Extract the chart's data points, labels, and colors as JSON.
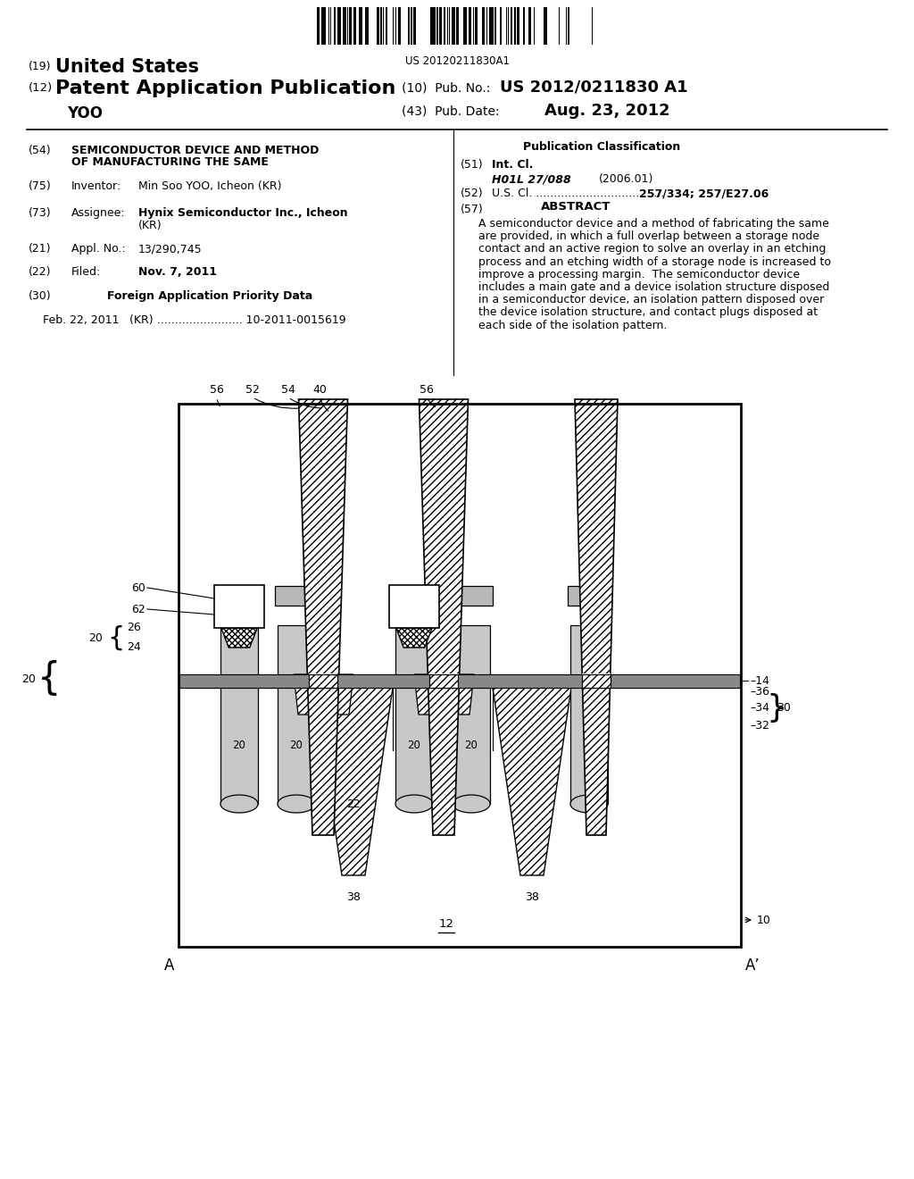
{
  "title_19": "(19) United States",
  "title_12": "(12) Patent Application Publication",
  "pub_no_label": "(10) Pub. No.:",
  "pub_no_val": "US 2012/0211830 A1",
  "author": "YOO",
  "pub_date_label": "(43) Pub. Date:",
  "pub_date_value": "Aug. 23, 2012",
  "barcode_text": "US 20120211830A1",
  "bg_color": "#ffffff"
}
